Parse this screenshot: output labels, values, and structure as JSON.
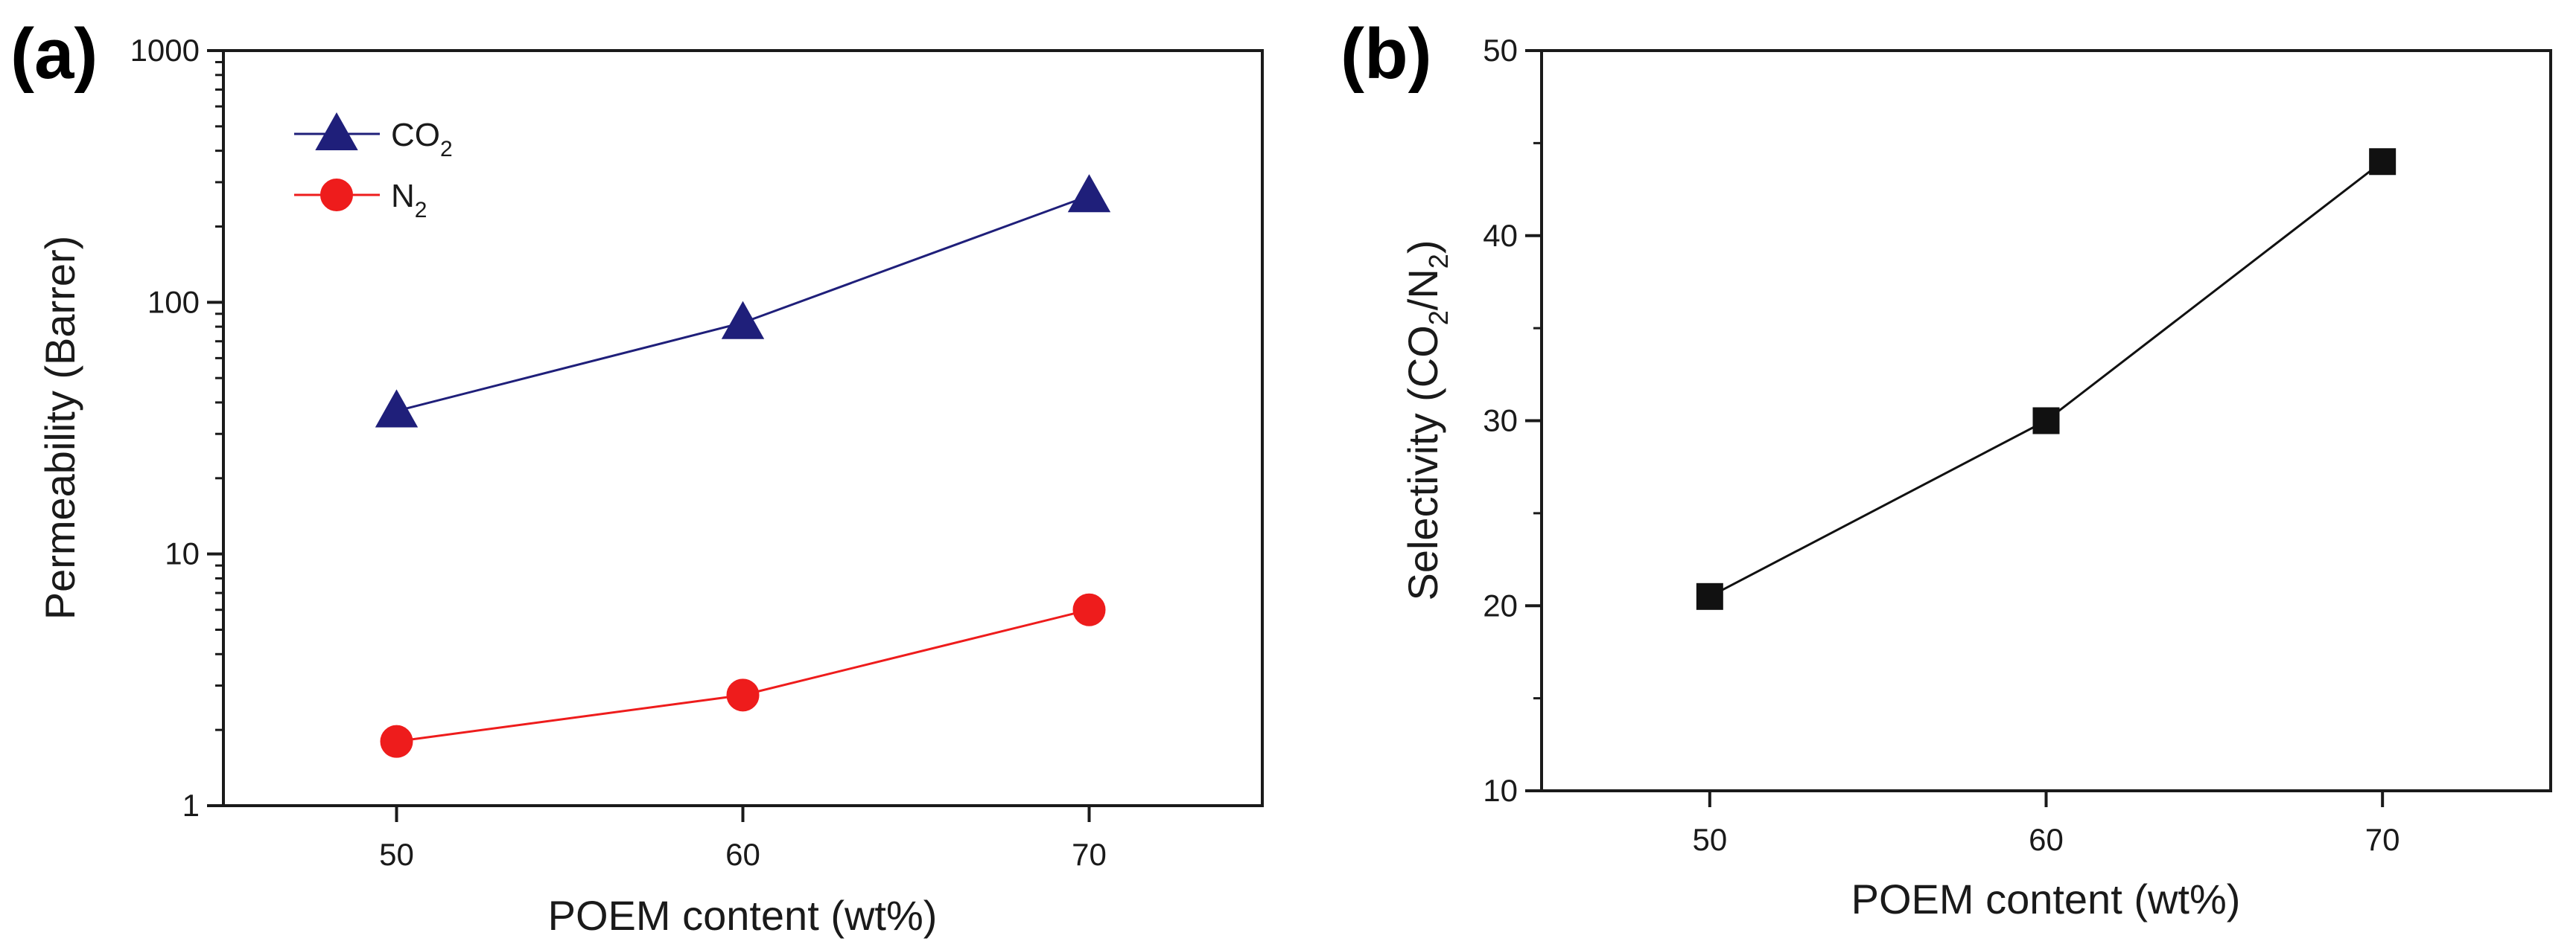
{
  "chart_data": [
    {
      "panel_label": "(a)",
      "type": "line",
      "yscale": "log",
      "xlabel": "POEM content (wt%)",
      "ylabel": "Permeability (Barrer)",
      "xlim": [
        45,
        75
      ],
      "ylim": [
        1,
        1000
      ],
      "xticks": [
        50,
        60,
        70
      ],
      "xtick_labels": [
        "50",
        "60",
        "70"
      ],
      "yticks": [
        1,
        10,
        100,
        1000
      ],
      "ytick_labels": [
        "1",
        "10",
        "100",
        "1000"
      ],
      "legend_position": "top-left",
      "series": [
        {
          "name": "CO2",
          "label_main": "CO",
          "label_sub": "2",
          "marker": "triangle",
          "color": "#1f1f7a",
          "x": [
            50,
            60,
            70
          ],
          "values": [
            37,
            83,
            265
          ]
        },
        {
          "name": "N2",
          "label_main": "N",
          "label_sub": "2",
          "marker": "circle",
          "color": "#ee1c1c",
          "x": [
            50,
            60,
            70
          ],
          "values": [
            1.8,
            2.75,
            6.0
          ]
        }
      ]
    },
    {
      "panel_label": "(b)",
      "type": "line",
      "xlabel": "POEM content (wt%)",
      "ylabel_parts": [
        "Selectivity (CO",
        "2",
        "/N",
        "2",
        ")"
      ],
      "xlim": [
        45,
        75
      ],
      "ylim": [
        10,
        50
      ],
      "xticks": [
        50,
        60,
        70
      ],
      "xtick_labels": [
        "50",
        "60",
        "70"
      ],
      "yticks": [
        10,
        20,
        30,
        40,
        50
      ],
      "ytick_labels": [
        "10",
        "20",
        "30",
        "40",
        "50"
      ],
      "series": [
        {
          "name": "Selectivity",
          "marker": "square",
          "color": "#111111",
          "x": [
            50,
            60,
            70
          ],
          "values": [
            20.5,
            30.0,
            44.0
          ]
        }
      ]
    }
  ]
}
